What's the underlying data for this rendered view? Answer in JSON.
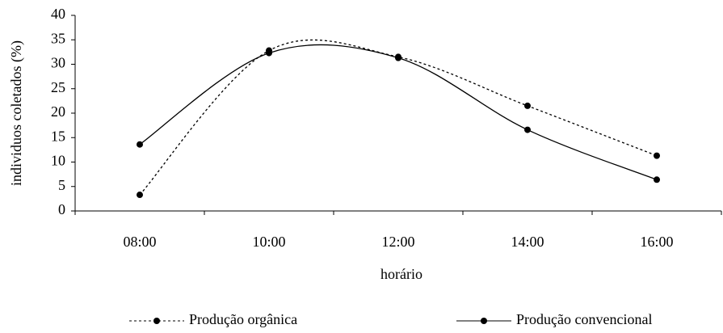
{
  "chart_data": {
    "type": "line",
    "x_label": "horário",
    "y_label": "individuos coletados (%)",
    "categories": [
      "08:00",
      "10:00",
      "12:00",
      "14:00",
      "16:00"
    ],
    "series": [
      {
        "name": "Produção orgânica",
        "color": "#000000",
        "dash": "dotted",
        "values": [
          3.3,
          32.8,
          31.5,
          21.5,
          11.3
        ]
      },
      {
        "name": "Produção convencional",
        "color": "#000000",
        "dash": "solid",
        "values": [
          13.6,
          32.3,
          31.3,
          16.6,
          6.4
        ]
      }
    ],
    "ylim": [
      0,
      40
    ],
    "yticks": [
      0,
      5,
      10,
      15,
      20,
      25,
      30,
      35,
      40
    ],
    "grid": false,
    "legend": "bottom"
  }
}
